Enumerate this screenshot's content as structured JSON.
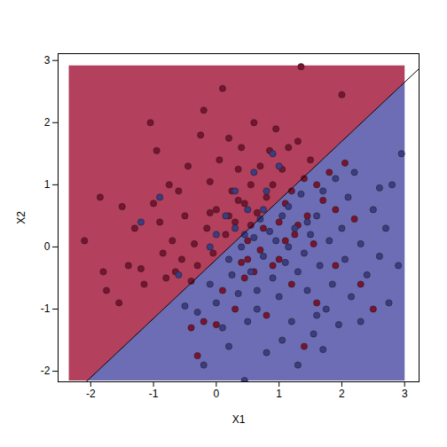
{
  "chart_data": {
    "type": "scatter",
    "x_label": "X1",
    "y_label": "X2",
    "xlim": [
      -2.52,
      3.23
    ],
    "ylim": [
      -2.17,
      3.11
    ],
    "xticks": [
      -2,
      -1,
      0,
      1,
      2,
      3
    ],
    "yticks": [
      -2,
      -1,
      0,
      1,
      2,
      3
    ],
    "grid_xrange": [
      -2.35,
      3.0
    ],
    "grid_yrange": [
      -2.15,
      2.92
    ],
    "regions": [
      {
        "side": "above",
        "color": "#b3405d"
      },
      {
        "side": "below",
        "color": "#6d6db5"
      }
    ],
    "boundary": {
      "slope": 0.95,
      "intercept": -0.2,
      "color": "#000000"
    },
    "series": [
      {
        "color": "#7b1230",
        "x": [
          -2.1,
          -1.85,
          -1.8,
          -1.75,
          -1.55,
          -1.5,
          -1.4,
          -1.3,
          -1.2,
          -1.15,
          -1.05,
          -1.0,
          -0.95,
          -0.9,
          -0.85,
          -0.8,
          -0.75,
          -0.7,
          -0.65,
          -0.6,
          -0.55,
          -0.5,
          -0.45,
          -0.4,
          -0.35,
          -0.3,
          -0.25,
          -0.2,
          -0.15,
          -0.1,
          -0.05,
          0.0,
          0.05,
          0.1,
          0.15,
          0.2,
          0.25,
          0.3,
          0.35,
          0.4,
          0.45,
          0.5,
          0.55,
          0.6,
          0.65,
          0.7,
          0.75,
          0.8,
          0.85,
          0.9,
          0.95,
          1.0,
          1.05,
          1.1,
          1.15,
          1.2,
          1.25,
          1.3,
          1.35,
          1.4,
          1.45,
          1.5,
          1.55,
          1.6,
          1.7,
          1.8,
          1.9,
          2.0,
          2.05,
          2.2,
          -0.2,
          0.1,
          0.3,
          0.6,
          0.8,
          1.0,
          1.2,
          1.4,
          1.6,
          1.9,
          2.3,
          2.5,
          0.9,
          0.45,
          -0.4,
          -0.3,
          0.0,
          0.5,
          0.7,
          1.1,
          -0.1,
          0.2,
          0.35,
          0.55,
          1.3,
          0.4
        ],
        "y": [
          0.1,
          0.8,
          -0.4,
          -0.7,
          -0.9,
          0.65,
          -0.3,
          0.3,
          -0.35,
          -0.6,
          2.0,
          0.7,
          1.55,
          0.4,
          -0.1,
          -0.5,
          1.0,
          0.1,
          -0.4,
          0.9,
          -0.2,
          0.5,
          1.3,
          -0.55,
          0.05,
          -0.3,
          1.8,
          2.2,
          0.3,
          1.05,
          -0.1,
          0.6,
          1.4,
          2.55,
          0.2,
          1.75,
          0.9,
          0.4,
          1.25,
          1.6,
          0.7,
          0.1,
          1.0,
          2.0,
          0.55,
          1.3,
          0.3,
          0.8,
          1.55,
          1.0,
          1.9,
          0.4,
          1.25,
          0.7,
          1.6,
          0.9,
          0.2,
          1.7,
          2.9,
          1.1,
          0.5,
          1.4,
          0.05,
          1.0,
          0.75,
          1.2,
          0.6,
          2.45,
          1.35,
          0.45,
          -1.2,
          -0.7,
          -1.0,
          -0.4,
          -1.1,
          -0.2,
          -0.6,
          -1.6,
          -0.9,
          -0.3,
          -0.6,
          -1.0,
          -0.3,
          -0.5,
          -1.3,
          -1.75,
          -1.25,
          -0.2,
          -0.05,
          0.1,
          0.55,
          0.5,
          0.75,
          0.35,
          0.35,
          -0.25
        ]
      },
      {
        "color": "#3c3c85",
        "x": [
          -1.2,
          -0.9,
          -0.6,
          -0.3,
          -0.1,
          0.0,
          0.1,
          0.15,
          0.2,
          0.3,
          0.35,
          0.4,
          0.45,
          0.5,
          0.55,
          0.6,
          0.65,
          0.7,
          0.75,
          0.8,
          0.85,
          0.9,
          0.95,
          1.0,
          1.05,
          1.1,
          1.15,
          1.2,
          1.25,
          1.3,
          1.35,
          1.4,
          1.45,
          1.5,
          1.55,
          1.6,
          1.65,
          1.7,
          1.75,
          1.8,
          1.85,
          1.9,
          1.95,
          2.0,
          2.05,
          2.1,
          2.15,
          2.2,
          2.3,
          2.4,
          2.5,
          2.6,
          2.7,
          2.75,
          2.8,
          2.9,
          2.95,
          1.0,
          0.6,
          0.3,
          0.9,
          -0.1,
          0.2,
          0.8,
          1.3,
          1.6,
          0.5,
          0.0,
          -0.5,
          -0.2,
          1.05,
          1.7,
          2.3,
          2.6,
          0.45,
          0.75,
          1.15,
          1.45,
          0.25,
          0.65
        ],
        "y": [
          0.4,
          0.8,
          -0.45,
          -1.05,
          -0.6,
          0.2,
          -1.3,
          0.5,
          -0.2,
          0.3,
          -0.75,
          0.0,
          -2.15,
          0.6,
          -0.4,
          0.15,
          -1.0,
          0.45,
          -0.15,
          0.9,
          0.25,
          -0.5,
          0.1,
          -0.8,
          0.5,
          -0.25,
          0.0,
          -1.2,
          0.3,
          -0.4,
          0.85,
          -0.1,
          -0.7,
          0.2,
          -1.4,
          0.5,
          -0.3,
          0.9,
          -1.0,
          0.1,
          -0.6,
          1.1,
          -1.25,
          0.3,
          -0.2,
          0.8,
          -0.8,
          1.2,
          0.05,
          -0.45,
          0.6,
          -0.15,
          0.3,
          -0.9,
          1.0,
          -0.3,
          1.5,
          1.3,
          1.2,
          0.9,
          1.5,
          0.0,
          -1.6,
          -1.7,
          -1.9,
          -1.1,
          -1.2,
          -0.9,
          -0.95,
          -1.9,
          -1.5,
          -1.65,
          -1.2,
          0.95,
          0.2,
          0.6,
          0.65,
          0.4,
          -0.45,
          -0.7
        ]
      }
    ]
  }
}
